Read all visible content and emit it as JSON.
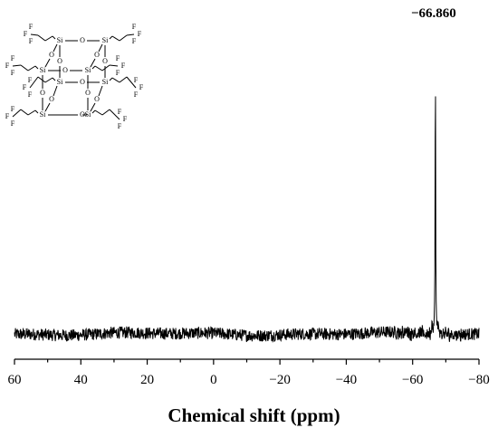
{
  "chart_data": {
    "type": "line",
    "title": "",
    "xlabel": "Chemical shift (ppm)",
    "ylabel": "",
    "xlim": [
      60,
      -80
    ],
    "x_reversed": true,
    "xticks": [
      60,
      40,
      20,
      0,
      -20,
      -40,
      -60,
      -80
    ],
    "xtick_labels": [
      "60",
      "40",
      "20",
      "0",
      "−20",
      "−40",
      "−60",
      "−80"
    ],
    "grid": false,
    "legend": "none",
    "series": [
      {
        "style": "noisy baseline with single sharp peak",
        "baseline": 0.0,
        "noise_amplitude": 0.02,
        "peaks": [
          {
            "x": -66.86,
            "height": 1.0,
            "label": "−66.860"
          },
          {
            "x": -65.9,
            "height": 0.04
          },
          {
            "x": -67.8,
            "height": 0.03
          }
        ]
      }
    ],
    "annotations": [
      "−66.860"
    ],
    "inset": {
      "type": "molecular-structure",
      "description_labels": [
        "Si",
        "O",
        "F"
      ]
    }
  }
}
